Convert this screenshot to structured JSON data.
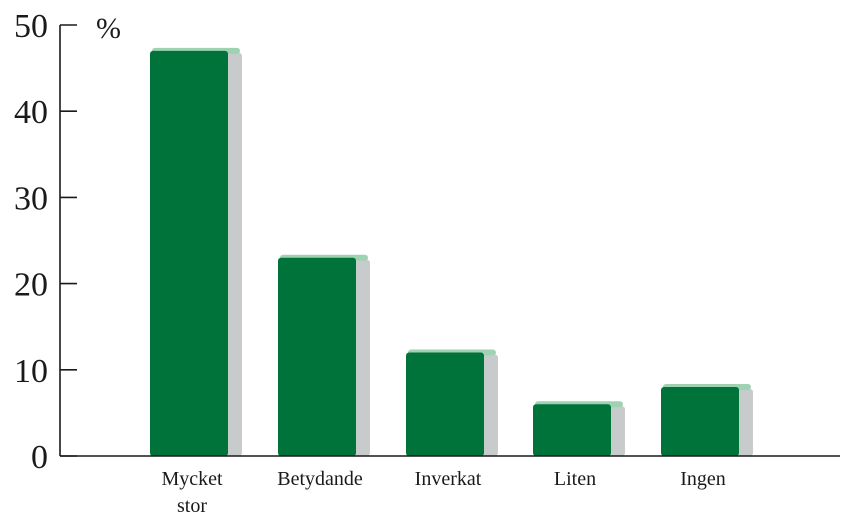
{
  "chart_data": {
    "type": "bar",
    "unit_label": "%",
    "categories": [
      [
        "Mycket",
        "stor"
      ],
      [
        "Betydande"
      ],
      [
        "Inverkat"
      ],
      [
        "Liten"
      ],
      [
        "Ingen"
      ]
    ],
    "values": [
      47,
      23,
      12,
      6,
      8
    ],
    "y_ticks": [
      0,
      10,
      20,
      30,
      40,
      50
    ],
    "ylim": [
      0,
      50
    ],
    "grid": false,
    "colors": {
      "bar_front": "#00733a",
      "bar_side": "#c8cbcc",
      "bar_top": "#9fd2b3",
      "axis": "#1a1a1a"
    }
  }
}
